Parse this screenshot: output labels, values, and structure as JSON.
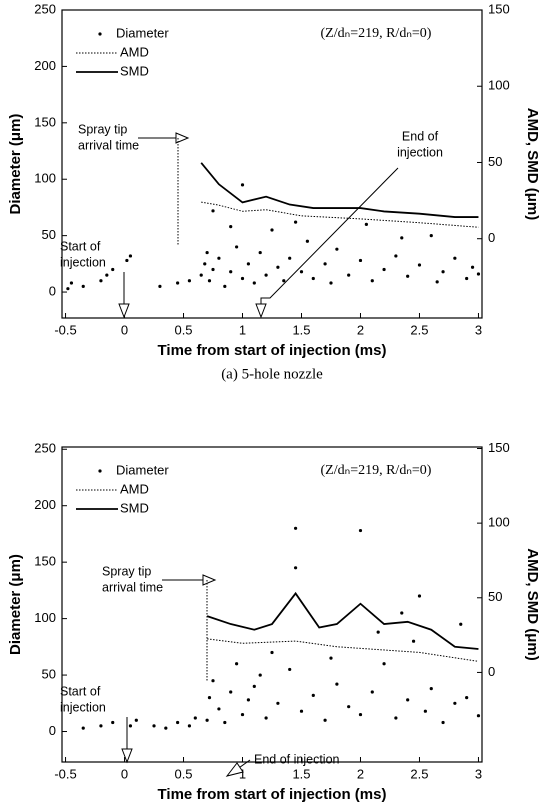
{
  "chart_data": [
    {
      "type": "scatter",
      "caption": "(a)  5-hole nozzle",
      "note": "(Z/dₙ=219, R/dₙ=0)",
      "x_label": "Time from start of injection (ms)",
      "y_label": "Diameter (μm)",
      "y2_label": "AMD, SMD (μm)",
      "xlim": [
        -0.53,
        3.03
      ],
      "ylim": [
        -23,
        250
      ],
      "y2lim": [
        -52,
        150
      ],
      "xticks": [
        -0.5,
        0,
        0.5,
        1,
        1.5,
        2,
        2.5,
        3
      ],
      "yticks": [
        0,
        50,
        100,
        150,
        200,
        250
      ],
      "y2ticks": [
        0,
        50,
        100,
        150
      ],
      "legend": "upper left",
      "annotations": [
        {
          "lines": [
            "Spray tip",
            "arrival time"
          ]
        },
        {
          "lines": [
            "Start of",
            "injection"
          ]
        },
        {
          "lines": [
            "End of",
            "injection"
          ]
        }
      ],
      "series": [
        {
          "name": "Diameter",
          "type": "scatter",
          "color": "#000000",
          "x": [
            -0.48,
            -0.45,
            -0.35,
            -0.2,
            -0.15,
            -0.1,
            0.02,
            0.05,
            0.3,
            0.45,
            0.55,
            0.65,
            0.68,
            0.7,
            0.72,
            0.75,
            0.8,
            0.85,
            0.9,
            0.95,
            1.0,
            1.05,
            1.1,
            1.15,
            1.2,
            1.25,
            1.3,
            1.35,
            1.4,
            1.5,
            1.55,
            1.6,
            1.7,
            1.75,
            1.8,
            1.9,
            2.0,
            2.05,
            2.1,
            2.2,
            2.3,
            2.4,
            2.5,
            2.6,
            2.65,
            2.7,
            2.8,
            2.9,
            2.95,
            3.0,
            1.0,
            0.75,
            1.45,
            2.35,
            0.9
          ],
          "values": [
            3,
            8,
            5,
            10,
            15,
            20,
            28,
            32,
            5,
            8,
            10,
            15,
            25,
            35,
            10,
            20,
            30,
            5,
            18,
            40,
            12,
            25,
            8,
            35,
            15,
            55,
            22,
            10,
            30,
            18,
            45,
            12,
            25,
            8,
            38,
            15,
            28,
            60,
            10,
            20,
            32,
            14,
            24,
            50,
            9,
            18,
            30,
            12,
            22,
            16,
            95,
            72,
            62,
            48,
            58
          ]
        },
        {
          "name": "AMD",
          "type": "line",
          "axis": "y2",
          "dash": "dotted",
          "color": "#000000",
          "x": [
            0.65,
            0.8,
            1.0,
            1.2,
            1.5,
            2.0,
            2.5,
            3.0
          ],
          "values": [
            24,
            22,
            18,
            19,
            15,
            13,
            10.5,
            7.5
          ]
        },
        {
          "name": "SMD",
          "type": "line",
          "axis": "y2",
          "dash": "solid",
          "color": "#000000",
          "x": [
            0.65,
            0.8,
            1.0,
            1.2,
            1.4,
            1.6,
            2.0,
            2.2,
            2.5,
            2.8,
            3.0
          ],
          "values": [
            49.8,
            35.7,
            23.8,
            27.6,
            22.4,
            20.1,
            20.1,
            17.9,
            16.4,
            14.2,
            14.2
          ]
        }
      ]
    },
    {
      "type": "scatter",
      "caption": "(b)  Single-hole nozzle",
      "note": "(Z/dₙ=219, R/dₙ=0)",
      "x_label": "Time from start of injection (ms)",
      "y_label": "Diameter (μm)",
      "y2_label": "AMD, SMD (μm)",
      "xlim": [
        -0.53,
        3.03
      ],
      "ylim": [
        -27,
        252
      ],
      "y2lim": [
        -60,
        151
      ],
      "xticks": [
        -0.5,
        0,
        0.5,
        1,
        1.5,
        2,
        2.5,
        3
      ],
      "yticks": [
        0,
        50,
        100,
        150,
        200,
        250
      ],
      "y2ticks": [
        0,
        50,
        100,
        150
      ],
      "legend": "upper left",
      "annotations": [
        {
          "lines": [
            "Spray tip",
            "arrival time"
          ]
        },
        {
          "lines": [
            "Start of",
            "injection"
          ]
        },
        {
          "lines": [
            "End of injection"
          ]
        }
      ],
      "series": [
        {
          "name": "Diameter",
          "type": "scatter",
          "color": "#000000",
          "x": [
            -0.35,
            -0.2,
            -0.1,
            0.05,
            0.1,
            0.25,
            0.35,
            0.45,
            0.55,
            0.6,
            0.7,
            0.72,
            0.75,
            0.8,
            0.85,
            0.9,
            1.0,
            1.05,
            1.1,
            1.2,
            1.3,
            1.4,
            1.45,
            1.45,
            1.5,
            1.6,
            1.7,
            1.8,
            1.9,
            2.0,
            2.0,
            2.1,
            2.2,
            2.3,
            2.4,
            2.5,
            2.55,
            2.6,
            2.7,
            2.8,
            2.9,
            3.0,
            1.25,
            1.75,
            2.35,
            2.45,
            1.15,
            0.95,
            2.85,
            2.15
          ],
          "values": [
            3,
            5,
            8,
            5,
            10,
            5,
            3,
            8,
            5,
            12,
            10,
            30,
            45,
            20,
            8,
            35,
            15,
            28,
            40,
            12,
            25,
            55,
            180,
            145,
            18,
            32,
            10,
            42,
            22,
            178,
            15,
            35,
            60,
            12,
            28,
            120,
            18,
            38,
            8,
            25,
            30,
            14,
            70,
            65,
            105,
            80,
            50,
            60,
            95,
            88
          ]
        },
        {
          "name": "AMD",
          "type": "line",
          "axis": "y2",
          "dash": "dotted",
          "color": "#000000",
          "x": [
            0.7,
            1.0,
            1.45,
            1.8,
            2.5,
            3.0
          ],
          "values": [
            22.5,
            19.5,
            21,
            17.2,
            13.4,
            7.4
          ]
        },
        {
          "name": "SMD",
          "type": "line",
          "axis": "y2",
          "dash": "solid",
          "color": "#000000",
          "x": [
            0.7,
            0.9,
            1.1,
            1.25,
            1.45,
            1.65,
            1.8,
            2.0,
            2.2,
            2.4,
            2.6,
            2.8,
            3.0
          ],
          "values": [
            37.7,
            32.4,
            28.6,
            32.4,
            52.9,
            30.1,
            32.4,
            46.0,
            32.4,
            33.9,
            28.6,
            17.2,
            15.7
          ]
        }
      ]
    }
  ]
}
